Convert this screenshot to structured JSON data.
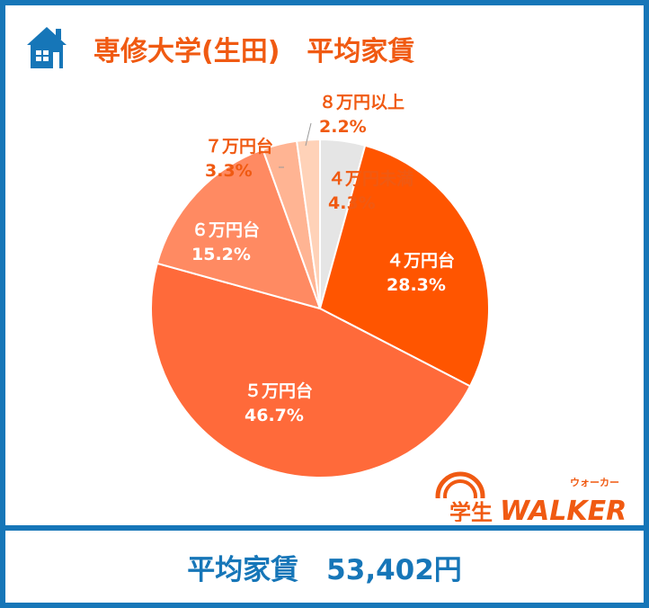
{
  "header": {
    "title": "専修大学(生田)　平均家賃",
    "icon": "house-icon"
  },
  "footer": {
    "summary": "平均家賃　53,402円"
  },
  "logo": {
    "text_main": "学生WALKER",
    "text_ruby": "ウォーカー"
  },
  "colors": {
    "accent": "#f05a12",
    "brand_blue": "#1676b8"
  },
  "chart_data": {
    "type": "pie",
    "title": "専修大学(生田)　平均家賃",
    "start": "12 o'clock, clockwise",
    "slices": [
      {
        "label": "４万円未満",
        "value": 4.3,
        "display": "4.3%",
        "color": "#e5e5e5"
      },
      {
        "label": "４万円台",
        "value": 28.3,
        "display": "28.3%",
        "color": "#ff5500"
      },
      {
        "label": "５万円台",
        "value": 46.7,
        "display": "46.7%",
        "color": "#ff6a3a"
      },
      {
        "label": "６万円台",
        "value": 15.2,
        "display": "15.2%",
        "color": "#ff8a62"
      },
      {
        "label": "７万円台",
        "value": 3.3,
        "display": "3.3%",
        "color": "#ffb493"
      },
      {
        "label": "８万円以上",
        "value": 2.2,
        "display": "2.2%",
        "color": "#ffd2b8"
      }
    ]
  }
}
